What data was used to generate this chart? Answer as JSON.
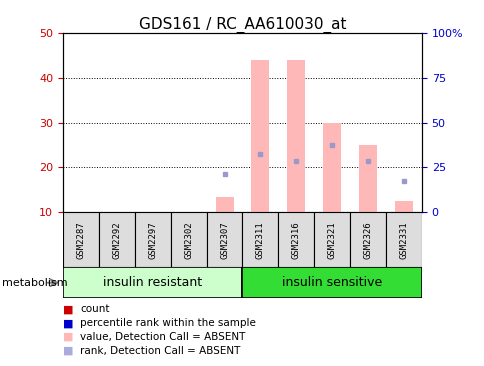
{
  "title": "GDS161 / RC_AA610030_at",
  "categories": [
    "GSM2287",
    "GSM2292",
    "GSM2297",
    "GSM2302",
    "GSM2307",
    "GSM2311",
    "GSM2316",
    "GSM2321",
    "GSM2326",
    "GSM2331"
  ],
  "group1_label": "insulin resistant",
  "group2_label": "insulin sensitive",
  "group1_count": 5,
  "group2_count": 5,
  "ylim_left": [
    10,
    50
  ],
  "ylim_right": [
    0,
    100
  ],
  "yticks_left": [
    10,
    20,
    30,
    40,
    50
  ],
  "yticks_right": [
    0,
    25,
    50,
    75,
    100
  ],
  "yticklabels_right": [
    "0",
    "25",
    "50",
    "75",
    "100%"
  ],
  "pink_bars": [
    0,
    0,
    0,
    0,
    13.5,
    44,
    44,
    30,
    25,
    12.5
  ],
  "blue_dots_y": [
    0,
    0,
    0,
    0,
    18.5,
    23,
    21.5,
    25,
    21.5,
    17
  ],
  "blue_dots_present": [
    false,
    false,
    false,
    false,
    true,
    true,
    true,
    true,
    true,
    true
  ],
  "pink_bar_color": "#ffb8b8",
  "blue_dot_color": "#9999cc",
  "bar_width": 0.5,
  "background_color": "#ffffff",
  "tick_color_left": "#cc0000",
  "tick_color_right": "#0000cc",
  "group1_bg": "#ccffcc",
  "group2_bg": "#33dd33",
  "sample_box_bg": "#dddddd",
  "legend_items": [
    {
      "label": "count",
      "color": "#cc0000"
    },
    {
      "label": "percentile rank within the sample",
      "color": "#0000cc"
    },
    {
      "label": "value, Detection Call = ABSENT",
      "color": "#ffb8b8"
    },
    {
      "label": "rank, Detection Call = ABSENT",
      "color": "#aaaadd"
    }
  ],
  "metabolism_label": "metabolism",
  "group_label_fontsize": 9,
  "tick_label_fontsize": 8,
  "title_fontsize": 11,
  "legend_fontsize": 7.5
}
